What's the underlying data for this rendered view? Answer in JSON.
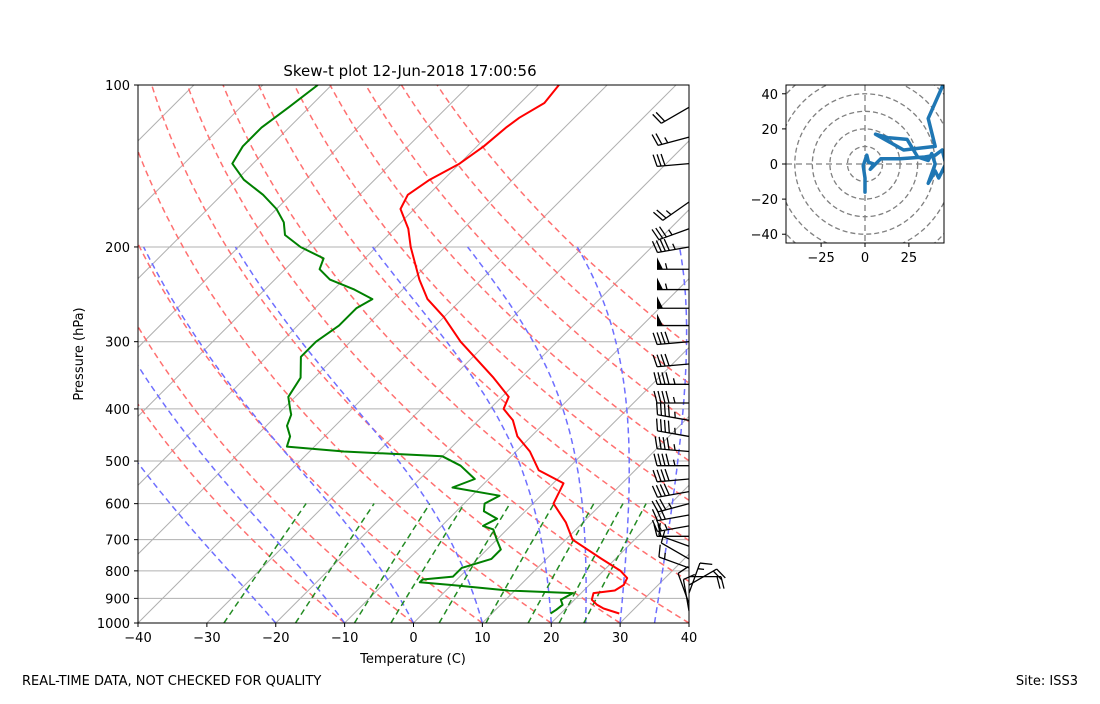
{
  "chart_data": [
    {
      "type": "line",
      "subtype": "skew-t log-p",
      "title": "Skew-t plot 12-Jun-2018 17:00:56",
      "xlabel": "Temperature (C)",
      "ylabel": "Pressure (hPa)",
      "xlim": [
        -40,
        40
      ],
      "ylim": [
        1000,
        100
      ],
      "x_ticks": [
        "-40",
        "-30",
        "-20",
        "-10",
        "0",
        "10",
        "20",
        "30",
        "40"
      ],
      "y_ticks": [
        "100",
        "200",
        "300",
        "400",
        "500",
        "600",
        "700",
        "800",
        "900",
        "1000"
      ],
      "grid": true,
      "series": [
        {
          "name": "Temperature",
          "color": "#ff0000",
          "points": [
            {
              "p": 960,
              "t": 28.5
            },
            {
              "p": 950,
              "t": 27.0
            },
            {
              "p": 940,
              "t": 25.5
            },
            {
              "p": 925,
              "t": 24.0
            },
            {
              "p": 905,
              "t": 22.5
            },
            {
              "p": 880,
              "t": 21.8
            },
            {
              "p": 870,
              "t": 24.5
            },
            {
              "p": 850,
              "t": 25.0
            },
            {
              "p": 825,
              "t": 24.5
            },
            {
              "p": 800,
              "t": 22.5
            },
            {
              "p": 760,
              "t": 18.0
            },
            {
              "p": 700,
              "t": 11.0
            },
            {
              "p": 650,
              "t": 7.5
            },
            {
              "p": 600,
              "t": 3.0
            },
            {
              "p": 550,
              "t": 1.5
            },
            {
              "p": 520,
              "t": -4.0
            },
            {
              "p": 480,
              "t": -8.0
            },
            {
              "p": 450,
              "t": -12.0
            },
            {
              "p": 420,
              "t": -15.0
            },
            {
              "p": 400,
              "t": -18.0
            },
            {
              "p": 380,
              "t": -19.0
            },
            {
              "p": 350,
              "t": -24.0
            },
            {
              "p": 300,
              "t": -34.0
            },
            {
              "p": 270,
              "t": -40.0
            },
            {
              "p": 250,
              "t": -45.0
            },
            {
              "p": 230,
              "t": -49.0
            },
            {
              "p": 200,
              "t": -55.0
            },
            {
              "p": 185,
              "t": -58.0
            },
            {
              "p": 170,
              "t": -62.0
            },
            {
              "p": 160,
              "t": -63.0
            },
            {
              "p": 150,
              "t": -62.0
            },
            {
              "p": 140,
              "t": -60.0
            },
            {
              "p": 130,
              "t": -59.0
            },
            {
              "p": 120,
              "t": -58.5
            },
            {
              "p": 115,
              "t": -58.0
            },
            {
              "p": 108,
              "t": -56.5
            },
            {
              "p": 100,
              "t": -57.0
            }
          ]
        },
        {
          "name": "Dewpoint",
          "color": "#008000",
          "points": [
            {
              "p": 960,
              "t": 18.5
            },
            {
              "p": 945,
              "t": 18.8
            },
            {
              "p": 925,
              "t": 19.0
            },
            {
              "p": 905,
              "t": 18.0
            },
            {
              "p": 880,
              "t": 18.8
            },
            {
              "p": 870,
              "t": 9.0
            },
            {
              "p": 850,
              "t": 0.0
            },
            {
              "p": 840,
              "t": -5.0
            },
            {
              "p": 830,
              "t": -5.0
            },
            {
              "p": 820,
              "t": -1.0
            },
            {
              "p": 790,
              "t": -1.0
            },
            {
              "p": 760,
              "t": 2.0
            },
            {
              "p": 730,
              "t": 2.0
            },
            {
              "p": 700,
              "t": 0.0
            },
            {
              "p": 670,
              "t": -2.0
            },
            {
              "p": 660,
              "t": -4.0
            },
            {
              "p": 640,
              "t": -3.0
            },
            {
              "p": 620,
              "t": -6.0
            },
            {
              "p": 600,
              "t": -7.0
            },
            {
              "p": 580,
              "t": -6.0
            },
            {
              "p": 560,
              "t": -14.0
            },
            {
              "p": 540,
              "t": -12.0
            },
            {
              "p": 510,
              "t": -16.0
            },
            {
              "p": 490,
              "t": -20.0
            },
            {
              "p": 480,
              "t": -35.0
            },
            {
              "p": 470,
              "t": -44.0
            },
            {
              "p": 450,
              "t": -45.0
            },
            {
              "p": 430,
              "t": -47.0
            },
            {
              "p": 410,
              "t": -48.0
            },
            {
              "p": 400,
              "t": -49.0
            },
            {
              "p": 380,
              "t": -51.0
            },
            {
              "p": 350,
              "t": -52.0
            },
            {
              "p": 320,
              "t": -55.0
            },
            {
              "p": 300,
              "t": -55.0
            },
            {
              "p": 280,
              "t": -54.0
            },
            {
              "p": 260,
              "t": -54.0
            },
            {
              "p": 250,
              "t": -53.0
            },
            {
              "p": 240,
              "t": -57.0
            },
            {
              "p": 230,
              "t": -62.0
            },
            {
              "p": 220,
              "t": -65.0
            },
            {
              "p": 210,
              "t": -66.0
            },
            {
              "p": 200,
              "t": -71.0
            },
            {
              "p": 190,
              "t": -75.0
            },
            {
              "p": 180,
              "t": -77.0
            },
            {
              "p": 170,
              "t": -80.0
            },
            {
              "p": 160,
              "t": -84.0
            },
            {
              "p": 150,
              "t": -89.0
            },
            {
              "p": 140,
              "t": -93.0
            },
            {
              "p": 130,
              "t": -94.0
            },
            {
              "p": 120,
              "t": -94.0
            },
            {
              "p": 110,
              "t": -93.0
            },
            {
              "p": 100,
              "t": -92.0
            }
          ]
        }
      ],
      "isotherms_c": [
        -150,
        -140,
        -130,
        -120,
        -110,
        -100,
        -90,
        -80,
        -70,
        -60,
        -50,
        -40,
        -30,
        -20,
        -10,
        0,
        10,
        20,
        30,
        40
      ],
      "dry_adiabats_c": [
        -10,
        0,
        10,
        20,
        30,
        40,
        50,
        60,
        70,
        80,
        90,
        100,
        110
      ],
      "moist_adiabats_c": [
        -20,
        -10,
        0,
        10,
        20,
        25,
        30,
        35
      ],
      "mixing_ratio_lines_gkg": [
        0.4,
        1,
        2,
        3,
        5,
        8,
        12,
        16,
        20
      ],
      "wind_barbs": {
        "color": "#000000",
        "levels": [
          {
            "p": 950,
            "dir": 350,
            "spd": 10
          },
          {
            "p": 920,
            "dir": 340,
            "spd": 12
          },
          {
            "p": 880,
            "dir": 20,
            "spd": 15
          },
          {
            "p": 850,
            "dir": 60,
            "spd": 18
          },
          {
            "p": 820,
            "dir": 90,
            "spd": 20
          },
          {
            "p": 790,
            "dir": 290,
            "spd": 15
          },
          {
            "p": 760,
            "dir": 300,
            "spd": 10
          },
          {
            "p": 720,
            "dir": 290,
            "spd": 12
          },
          {
            "p": 690,
            "dir": 270,
            "spd": 20
          },
          {
            "p": 660,
            "dir": 260,
            "spd": 25
          },
          {
            "p": 630,
            "dir": 260,
            "spd": 30
          },
          {
            "p": 600,
            "dir": 255,
            "spd": 35
          },
          {
            "p": 570,
            "dir": 260,
            "spd": 40
          },
          {
            "p": 540,
            "dir": 265,
            "spd": 40
          },
          {
            "p": 510,
            "dir": 270,
            "spd": 45
          },
          {
            "p": 480,
            "dir": 275,
            "spd": 45
          },
          {
            "p": 450,
            "dir": 280,
            "spd": 45
          },
          {
            "p": 420,
            "dir": 280,
            "spd": 45
          },
          {
            "p": 390,
            "dir": 270,
            "spd": 45
          },
          {
            "p": 360,
            "dir": 270,
            "spd": 45
          },
          {
            "p": 330,
            "dir": 265,
            "spd": 40
          },
          {
            "p": 300,
            "dir": 265,
            "spd": 40
          },
          {
            "p": 280,
            "dir": 270,
            "spd": 50
          },
          {
            "p": 260,
            "dir": 270,
            "spd": 50
          },
          {
            "p": 240,
            "dir": 270,
            "spd": 55
          },
          {
            "p": 220,
            "dir": 270,
            "spd": 55
          },
          {
            "p": 200,
            "dir": 260,
            "spd": 45
          },
          {
            "p": 185,
            "dir": 250,
            "spd": 35
          },
          {
            "p": 165,
            "dir": 235,
            "spd": 25
          },
          {
            "p": 140,
            "dir": 265,
            "spd": 30
          },
          {
            "p": 125,
            "dir": 255,
            "spd": 25
          },
          {
            "p": 110,
            "dir": 240,
            "spd": 20
          }
        ]
      }
    },
    {
      "type": "line",
      "subtype": "hodograph",
      "title": "",
      "xlim": [
        -45,
        45
      ],
      "ylim": [
        -45,
        45
      ],
      "x_ticks": [
        "−25",
        "0",
        "25"
      ],
      "y_ticks": [
        "40",
        "20",
        "0",
        "−20",
        "−40"
      ],
      "range_rings": [
        10,
        20,
        30,
        40,
        50,
        60
      ],
      "series": [
        {
          "name": "hodograph",
          "color": "#1f77b4",
          "points": [
            {
              "u": 0,
              "v": -16
            },
            {
              "u": 0,
              "v": -8
            },
            {
              "u": -1,
              "v": -1
            },
            {
              "u": 1,
              "v": 5
            },
            {
              "u": 2,
              "v": 1
            },
            {
              "u": 5,
              "v": 0
            },
            {
              "u": 3,
              "v": -3
            },
            {
              "u": 9,
              "v": 3
            },
            {
              "u": 20,
              "v": 3
            },
            {
              "u": 34,
              "v": 4
            },
            {
              "u": 40,
              "v": 5
            },
            {
              "u": 44,
              "v": 8
            },
            {
              "u": 46,
              "v": 0
            },
            {
              "u": 42,
              "v": -8
            },
            {
              "u": 40,
              "v": -4
            },
            {
              "u": 36,
              "v": -11
            },
            {
              "u": 40,
              "v": 0
            },
            {
              "u": 38,
              "v": 6
            },
            {
              "u": 36,
              "v": 2
            },
            {
              "u": 30,
              "v": 4
            },
            {
              "u": 24,
              "v": 14
            },
            {
              "u": 13,
              "v": 15
            },
            {
              "u": 6,
              "v": 17
            },
            {
              "u": 22,
              "v": 8
            },
            {
              "u": 40,
              "v": 10
            },
            {
              "u": 36,
              "v": 26
            },
            {
              "u": 44,
              "v": 44
            }
          ]
        }
      ]
    }
  ],
  "footer": {
    "left": "REAL-TIME DATA, NOT CHECKED FOR QUALITY",
    "right": "Site: ISS3"
  }
}
